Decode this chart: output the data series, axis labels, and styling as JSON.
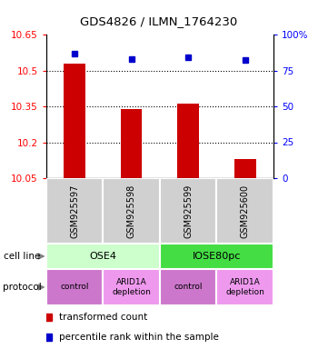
{
  "title": "GDS4826 / ILMN_1764230",
  "samples": [
    "GSM925597",
    "GSM925598",
    "GSM925599",
    "GSM925600"
  ],
  "bar_values": [
    10.53,
    10.34,
    10.36,
    10.13
  ],
  "bar_bottom": 10.05,
  "blue_dot_values": [
    87,
    83,
    84,
    82
  ],
  "ylim_left": [
    10.05,
    10.65
  ],
  "ylim_right": [
    0,
    100
  ],
  "yticks_left": [
    10.05,
    10.2,
    10.35,
    10.5,
    10.65
  ],
  "yticks_right": [
    0,
    25,
    50,
    75,
    100
  ],
  "ytick_right_labels": [
    "0",
    "25",
    "50",
    "75",
    "100%"
  ],
  "bar_color": "#cc0000",
  "dot_color": "#0000cc",
  "cell_line_groups": [
    {
      "label": "OSE4",
      "span": [
        0,
        2
      ],
      "color": "#ccffcc"
    },
    {
      "label": "IOSE80pc",
      "span": [
        2,
        4
      ],
      "color": "#44dd44"
    }
  ],
  "protocol_groups": [
    {
      "label": "control",
      "span": [
        0,
        1
      ],
      "color": "#cc77cc"
    },
    {
      "label": "ARID1A\ndepletion",
      "span": [
        1,
        2
      ],
      "color": "#ee99ee"
    },
    {
      "label": "control",
      "span": [
        2,
        3
      ],
      "color": "#cc77cc"
    },
    {
      "label": "ARID1A\ndepletion",
      "span": [
        3,
        4
      ],
      "color": "#ee99ee"
    }
  ],
  "legend_items": [
    {
      "color": "#cc0000",
      "label": "transformed count"
    },
    {
      "color": "#0000cc",
      "label": "percentile rank within the sample"
    }
  ],
  "gridline_y": [
    10.2,
    10.35,
    10.5
  ]
}
